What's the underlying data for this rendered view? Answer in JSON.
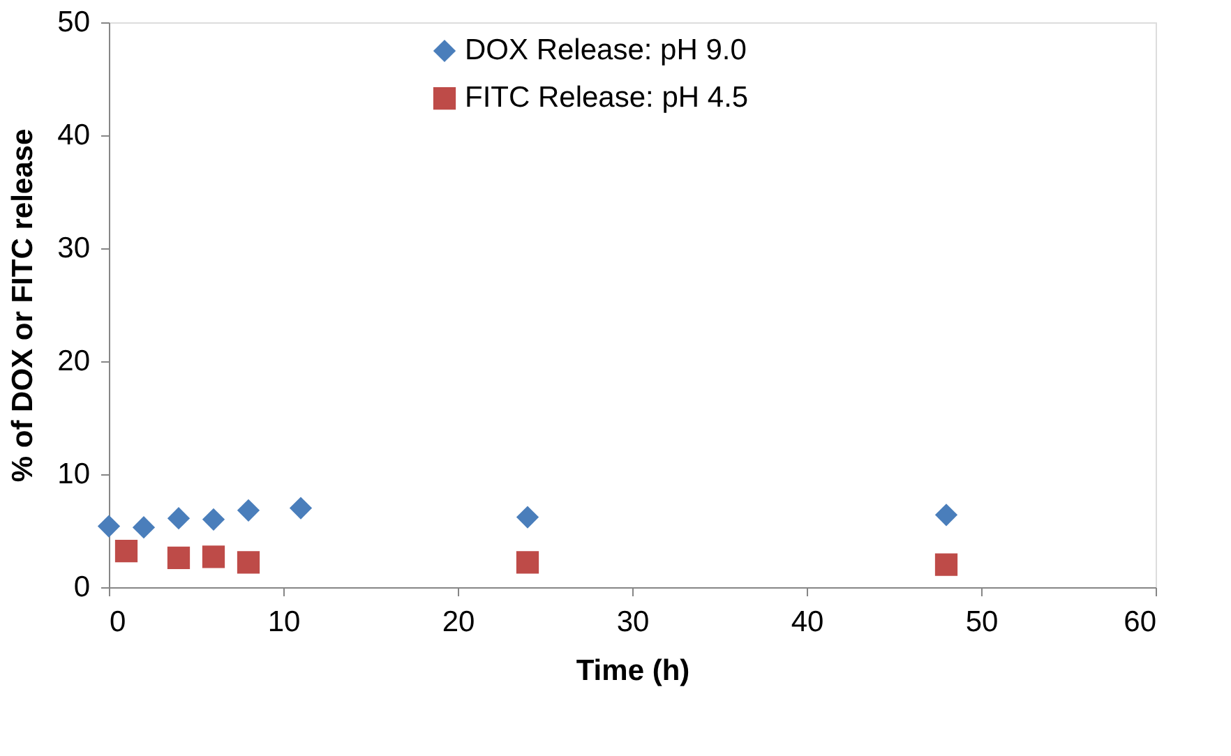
{
  "chart_data": {
    "type": "scatter",
    "xlabel": "Time (h)",
    "ylabel": "% of DOX or FITC release",
    "xlim": [
      0,
      60
    ],
    "xticks": [
      0,
      10,
      20,
      30,
      40,
      50,
      60
    ],
    "ylim": [
      0,
      50
    ],
    "yticks": [
      0,
      10,
      20,
      30,
      40,
      50
    ],
    "grid": false,
    "legend": "top",
    "series": [
      {
        "name": "DOX Release: pH 9.0",
        "color": "#4a7ebb",
        "marker": "diamond",
        "x": [
          0,
          2,
          4,
          6,
          8,
          11,
          24,
          48
        ],
        "values": [
          5.4,
          5.3,
          6.1,
          6.0,
          6.8,
          7.0,
          6.2,
          6.4
        ]
      },
      {
        "name": "FITC Release: pH 4.5",
        "color": "#be4b48",
        "marker": "square",
        "x": [
          1,
          4,
          6,
          8,
          24,
          48
        ],
        "values": [
          3.2,
          2.6,
          2.7,
          2.2,
          2.2,
          2.0
        ]
      }
    ]
  }
}
